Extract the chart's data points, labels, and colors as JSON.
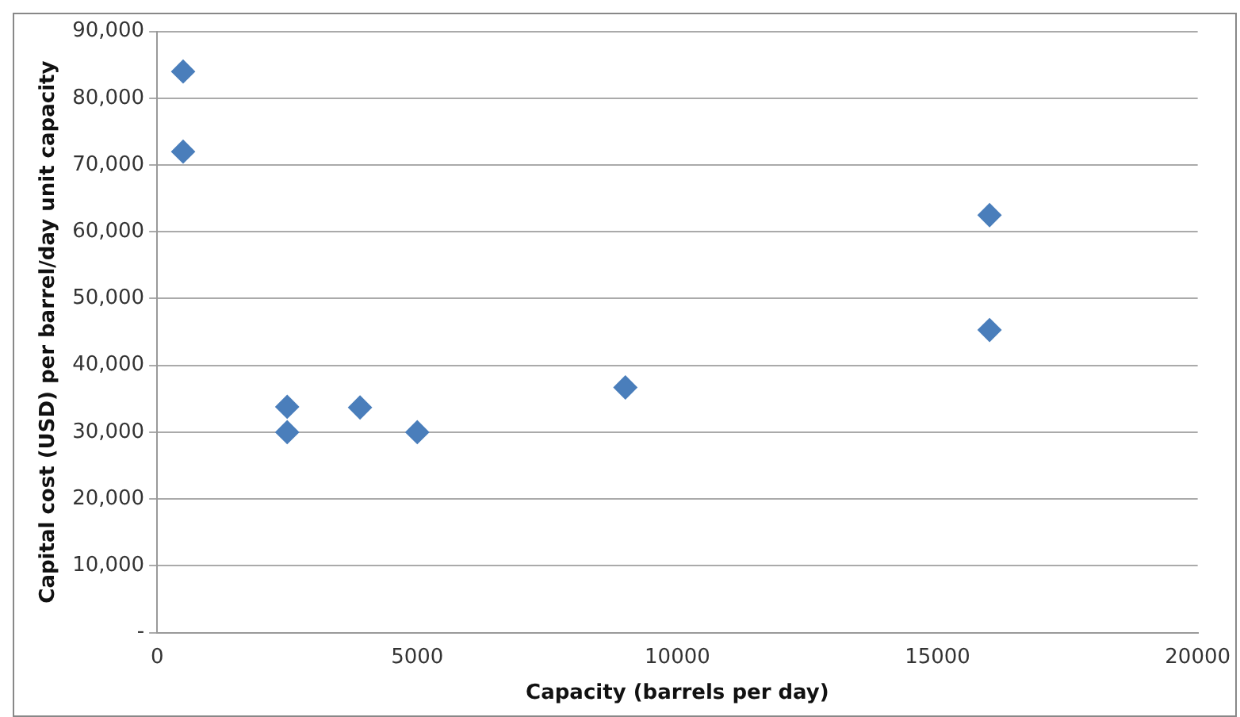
{
  "chart_data": {
    "type": "scatter",
    "xlabel": "Capacity (barrels per day)",
    "ylabel": "Capital cost (USD) per barrel/day unit capacity",
    "x": [
      500,
      500,
      2500,
      2500,
      3900,
      5000,
      9000,
      16000,
      16000
    ],
    "values": [
      84000,
      72000,
      33800,
      30000,
      33700,
      30000,
      36700,
      62500,
      45300
    ],
    "color": "#4a7ebb",
    "marker": "diamond",
    "xlim": [
      0,
      20000
    ],
    "xticks": [
      0,
      5000,
      10000,
      15000,
      20000
    ],
    "ylim": [
      0,
      90000
    ],
    "yticks": [
      {
        "value": 0,
        "label": "-"
      },
      {
        "value": 10000,
        "label": "10,000"
      },
      {
        "value": 20000,
        "label": "20,000"
      },
      {
        "value": 30000,
        "label": "30,000"
      },
      {
        "value": 40000,
        "label": "40,000"
      },
      {
        "value": 50000,
        "label": "50,000"
      },
      {
        "value": 60000,
        "label": "60,000"
      },
      {
        "value": 70000,
        "label": "70,000"
      },
      {
        "value": 80000,
        "label": "80,000"
      },
      {
        "value": 90000,
        "label": "90,000"
      }
    ],
    "grid": "y",
    "legend": false
  }
}
